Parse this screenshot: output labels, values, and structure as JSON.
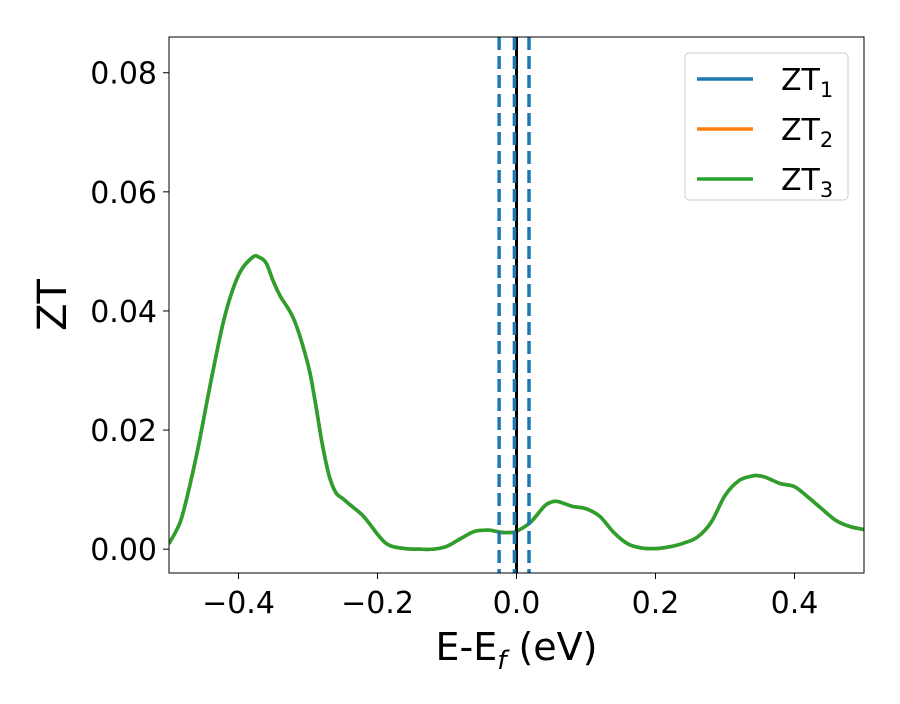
{
  "chart_data": {
    "type": "line",
    "xlabel": {
      "main": "E-E",
      "sub": "f",
      "unit": " (eV)"
    },
    "ylabel": "ZT",
    "xlim": [
      -0.5,
      0.5
    ],
    "ylim": [
      -0.004,
      0.086
    ],
    "x_ticks": [
      -0.4,
      -0.2,
      0.0,
      0.2,
      0.4
    ],
    "x_tick_labels": [
      "−0.4",
      "−0.2",
      "0.0",
      "0.2",
      "0.4"
    ],
    "y_ticks": [
      0.0,
      0.02,
      0.04,
      0.06,
      0.08
    ],
    "y_tick_labels": [
      "0.00",
      "0.02",
      "0.04",
      "0.06",
      "0.08"
    ],
    "grid": false,
    "legend_position": "top-right",
    "series": [
      {
        "name": "ZT",
        "sub": "1",
        "color": "#1f77b4"
      },
      {
        "name": "ZT",
        "sub": "2",
        "color": "#ff7f0e"
      },
      {
        "name": "ZT",
        "sub": "3",
        "color": "#2ca02c"
      }
    ],
    "curve": {
      "x": [
        -0.5,
        -0.49,
        -0.48,
        -0.46,
        -0.44,
        -0.42,
        -0.4,
        -0.38,
        -0.37,
        -0.36,
        -0.35,
        -0.34,
        -0.32,
        -0.3,
        -0.29,
        -0.28,
        -0.27,
        -0.26,
        -0.25,
        -0.24,
        -0.22,
        -0.2,
        -0.19,
        -0.18,
        -0.16,
        -0.14,
        -0.12,
        -0.1,
        -0.08,
        -0.06,
        -0.04,
        -0.03,
        -0.02,
        -0.01,
        0.0,
        0.02,
        0.04,
        0.05,
        0.06,
        0.08,
        0.1,
        0.12,
        0.14,
        0.16,
        0.18,
        0.2,
        0.22,
        0.24,
        0.26,
        0.28,
        0.3,
        0.32,
        0.34,
        0.35,
        0.36,
        0.38,
        0.4,
        0.42,
        0.44,
        0.46,
        0.48,
        0.5
      ],
      "y": [
        0.001,
        0.003,
        0.006,
        0.016,
        0.028,
        0.039,
        0.046,
        0.049,
        0.049,
        0.048,
        0.045,
        0.0425,
        0.0385,
        0.031,
        0.025,
        0.018,
        0.0125,
        0.0095,
        0.0085,
        0.0075,
        0.0055,
        0.0025,
        0.0012,
        0.0005,
        0.0001,
        0.0,
        0.0,
        0.0005,
        0.0018,
        0.003,
        0.0032,
        0.003,
        0.0028,
        0.0028,
        0.003,
        0.0045,
        0.0072,
        0.0079,
        0.008,
        0.0072,
        0.0068,
        0.0055,
        0.0028,
        0.0009,
        0.0002,
        0.0001,
        0.0004,
        0.001,
        0.002,
        0.0045,
        0.009,
        0.0115,
        0.0123,
        0.0123,
        0.012,
        0.011,
        0.0105,
        0.0087,
        0.0067,
        0.0048,
        0.0038,
        0.0033
      ]
    },
    "vlines_solid": [
      {
        "x": 0.0,
        "color": "#000000"
      }
    ],
    "vlines_dashed": [
      {
        "x": -0.025,
        "color": "#1f77b4"
      },
      {
        "x": -0.003,
        "color": "#1f77b4"
      },
      {
        "x": 0.018,
        "color": "#1f77b4"
      }
    ]
  }
}
